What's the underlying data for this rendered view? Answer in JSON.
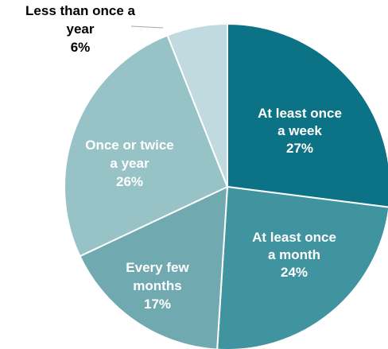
{
  "chart_data": {
    "type": "pie",
    "title": "",
    "slices": [
      {
        "label_lines": [
          "At least once",
          "a week"
        ],
        "value": 27,
        "value_label": "27%",
        "color": "#0c7386",
        "text_color": "#ffffff"
      },
      {
        "label_lines": [
          "At least once",
          "a month"
        ],
        "value": 24,
        "value_label": "24%",
        "color": "#3f949f",
        "text_color": "#ffffff"
      },
      {
        "label_lines": [
          "Every few",
          "months"
        ],
        "value": 17,
        "value_label": "17%",
        "color": "#70a9b0",
        "text_color": "#ffffff"
      },
      {
        "label_lines": [
          "Once or twice",
          "a year"
        ],
        "value": 26,
        "value_label": "26%",
        "color": "#98c3c6",
        "text_color": "#ffffff"
      },
      {
        "label_lines": [
          "Less than once a",
          "year"
        ],
        "value": 6,
        "value_label": "6%",
        "color": "#c1dadf",
        "text_color": "#000000",
        "outside": true
      }
    ],
    "legend": "none",
    "start_angle_deg": 0,
    "direction": "clockwise"
  }
}
